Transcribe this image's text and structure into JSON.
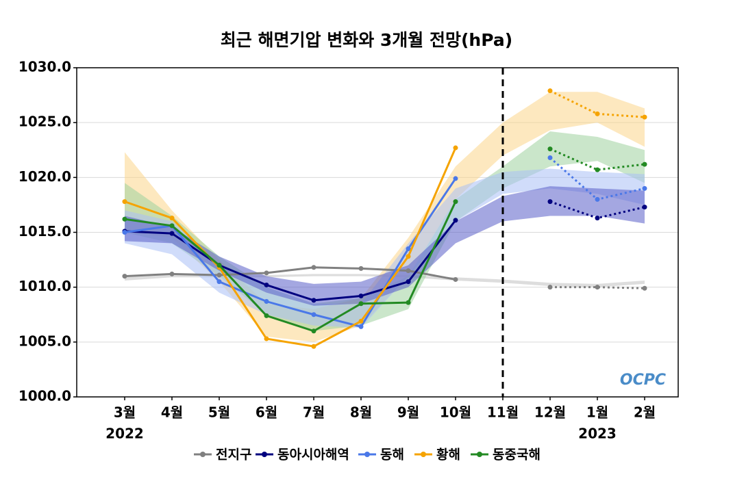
{
  "chart_data": {
    "type": "line",
    "title": "최근 해면기압 변화와 3개월 전망(hPa)",
    "categories": [
      "3월",
      "4월",
      "5월",
      "6월",
      "7월",
      "8월",
      "9월",
      "10월",
      "11월",
      "12월",
      "1월",
      "2월"
    ],
    "category_years": [
      "2022",
      null,
      null,
      null,
      null,
      null,
      null,
      null,
      null,
      null,
      "2023",
      null
    ],
    "ylim": [
      1000,
      1030
    ],
    "yticks": [
      {
        "value": 1000,
        "label": "1000.0"
      },
      {
        "value": 1005,
        "label": "1005.0"
      },
      {
        "value": 1010,
        "label": "1010.0"
      },
      {
        "value": 1015,
        "label": "1015.0"
      },
      {
        "value": 1020,
        "label": "1020.0"
      },
      {
        "value": 1025,
        "label": "1025.0"
      },
      {
        "value": 1030,
        "label": "1030.0"
      }
    ],
    "grid": true,
    "legend": "bottom",
    "watermark": "OCPC",
    "series": [
      {
        "name": "전지구",
        "color": "#808080",
        "band_color": "#d9d9d9",
        "values": [
          1011.0,
          1011.2,
          1011.1,
          1011.3,
          1011.8,
          1011.7,
          1011.5,
          1010.7,
          null,
          null,
          null,
          null
        ],
        "forecast": [
          null,
          null,
          null,
          null,
          null,
          null,
          null,
          null,
          null,
          1010.0,
          1010.0,
          1009.9
        ],
        "lower": [
          1010.6,
          1010.9,
          1010.9,
          1010.9,
          1011.0,
          1011.0,
          1010.9,
          1010.6,
          1010.4,
          1010.1,
          1010.0,
          1010.3
        ],
        "upper": [
          1010.9,
          1011.1,
          1011.1,
          1011.1,
          1011.2,
          1011.2,
          1011.1,
          1010.9,
          1010.7,
          1010.4,
          1010.3,
          1010.6
        ]
      },
      {
        "name": "동아시아해역",
        "color": "#00007f",
        "band_color": "#5a5fc8",
        "values": [
          1015.1,
          1014.9,
          1012.0,
          1010.2,
          1008.8,
          1009.2,
          1010.5,
          1016.1,
          null,
          null,
          null,
          null
        ],
        "forecast": [
          null,
          null,
          null,
          null,
          null,
          null,
          null,
          null,
          null,
          1017.8,
          1016.3,
          1017.3
        ],
        "lower": [
          1014.2,
          1014.0,
          1011.5,
          1009.5,
          1008.3,
          1008.5,
          1010.0,
          1014.0,
          1016.0,
          1016.5,
          1016.5,
          1015.8
        ],
        "upper": [
          1016.5,
          1015.5,
          1012.8,
          1011.0,
          1010.3,
          1010.5,
          1012.0,
          1016.0,
          1018.3,
          1019.2,
          1019.0,
          1018.8
        ]
      },
      {
        "name": "동해",
        "color": "#4a78e8",
        "band_color": "#a9c0f5",
        "values": [
          1015.0,
          1015.6,
          1010.5,
          1008.7,
          1007.5,
          1006.4,
          1013.5,
          1019.9,
          null,
          null,
          null,
          null
        ],
        "forecast": [
          null,
          null,
          null,
          null,
          null,
          null,
          null,
          null,
          null,
          1021.8,
          1018.0,
          1019.0
        ],
        "lower": [
          1014.0,
          1013.0,
          1009.5,
          1007.5,
          1006.5,
          1006.3,
          1011.0,
          1016.0,
          1018.5,
          1019.0,
          1018.5,
          1017.5
        ],
        "upper": [
          1017.0,
          1016.0,
          1012.0,
          1010.0,
          1008.5,
          1008.5,
          1014.0,
          1019.0,
          1020.5,
          1020.8,
          1020.5,
          1020.3
        ]
      },
      {
        "name": "황해",
        "color": "#f5a300",
        "band_color": "#fbd68a",
        "values": [
          1017.8,
          1016.3,
          1011.8,
          1005.3,
          1004.6,
          1006.9,
          1012.8,
          1022.7,
          null,
          null,
          null,
          null
        ],
        "forecast": [
          null,
          null,
          null,
          null,
          null,
          null,
          null,
          null,
          null,
          1027.9,
          1025.8,
          1025.5
        ],
        "lower": [
          1015.0,
          1014.5,
          1010.5,
          1005.5,
          1005.0,
          1006.5,
          1011.0,
          1018.0,
          1022.0,
          1024.3,
          1025.0,
          1022.8
        ],
        "upper": [
          1022.3,
          1017.0,
          1012.5,
          1008.5,
          1008.0,
          1009.0,
          1014.5,
          1021.0,
          1025.0,
          1027.8,
          1027.8,
          1026.3
        ]
      },
      {
        "name": "동중국해",
        "color": "#238a23",
        "band_color": "#9fd29f",
        "values": [
          1016.2,
          1015.6,
          1012.0,
          1007.4,
          1006.0,
          1008.5,
          1008.6,
          1017.8,
          null,
          null,
          null,
          null
        ],
        "forecast": [
          null,
          null,
          null,
          null,
          null,
          null,
          null,
          null,
          null,
          1022.6,
          1020.7,
          1021.2
        ],
        "lower": [
          1015.0,
          1014.0,
          1011.0,
          1007.5,
          1006.0,
          1006.5,
          1008.0,
          1016.0,
          1019.0,
          1021.0,
          1021.5,
          1019.5
        ],
        "upper": [
          1019.5,
          1016.5,
          1012.8,
          1010.0,
          1008.5,
          1009.0,
          1011.0,
          1018.0,
          1021.0,
          1024.2,
          1023.7,
          1022.5
        ]
      }
    ]
  }
}
